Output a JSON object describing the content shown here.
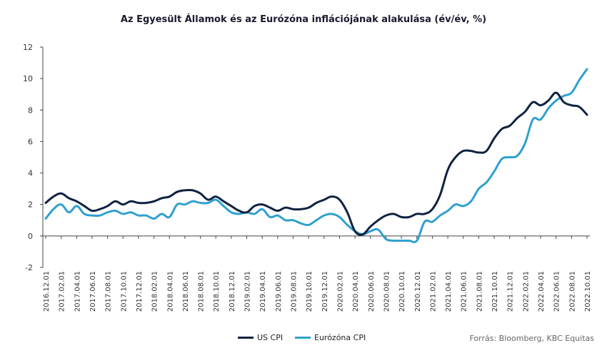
{
  "chart_data": {
    "type": "line",
    "title": "Az Egyesült  Államok és az Eurózóna inflációjának alakulása (év/év, %)",
    "xlabel": "",
    "ylabel": "",
    "ylim": [
      -2,
      12
    ],
    "yticks": [
      -2,
      0,
      2,
      4,
      6,
      8,
      10,
      12
    ],
    "grid": false,
    "legend_position": "bottom",
    "x_tick_labels": [
      "2016.12.01",
      "2017.02.01",
      "2017.04.01",
      "2017.06.01",
      "2017.08.01",
      "2017.10.01",
      "2017.12.01",
      "2018.02.01",
      "2018.04.01",
      "2018.06.01",
      "2018.08.01",
      "2018.10.01",
      "2018.12.01",
      "2019.02.01",
      "2019.04.01",
      "2019.06.01",
      "2019.08.01",
      "2019.10.01",
      "2019.12.01",
      "2020.02.01",
      "2020.04.01",
      "2020.06.01",
      "2020.08.01",
      "2020.10.01",
      "2020.12.01",
      "2021.02.01",
      "2021.04.01",
      "2021.06.01",
      "2021.08.01",
      "2021.10.01",
      "2021.12.01",
      "2022.02.01",
      "2022.04.01",
      "2022.06.01",
      "2022.08.01",
      "2022.10.01"
    ],
    "x": [
      "2016.12.01",
      "2017.01.01",
      "2017.02.01",
      "2017.03.01",
      "2017.04.01",
      "2017.05.01",
      "2017.06.01",
      "2017.07.01",
      "2017.08.01",
      "2017.09.01",
      "2017.10.01",
      "2017.11.01",
      "2017.12.01",
      "2018.01.01",
      "2018.02.01",
      "2018.03.01",
      "2018.04.01",
      "2018.05.01",
      "2018.06.01",
      "2018.07.01",
      "2018.08.01",
      "2018.09.01",
      "2018.10.01",
      "2018.11.01",
      "2018.12.01",
      "2019.01.01",
      "2019.02.01",
      "2019.03.01",
      "2019.04.01",
      "2019.05.01",
      "2019.06.01",
      "2019.07.01",
      "2019.08.01",
      "2019.09.01",
      "2019.10.01",
      "2019.11.01",
      "2019.12.01",
      "2020.01.01",
      "2020.02.01",
      "2020.03.01",
      "2020.04.01",
      "2020.05.01",
      "2020.06.01",
      "2020.07.01",
      "2020.08.01",
      "2020.09.01",
      "2020.10.01",
      "2020.11.01",
      "2020.12.01",
      "2021.01.01",
      "2021.02.01",
      "2021.03.01",
      "2021.04.01",
      "2021.05.01",
      "2021.06.01",
      "2021.07.01",
      "2021.08.01",
      "2021.09.01",
      "2021.10.01",
      "2021.11.01",
      "2021.12.01",
      "2022.01.01",
      "2022.02.01",
      "2022.03.01",
      "2022.04.01",
      "2022.05.01",
      "2022.06.01",
      "2022.07.01",
      "2022.08.01",
      "2022.09.01",
      "2022.10.01"
    ],
    "series": [
      {
        "name": "US CPI",
        "color": "#0f2241",
        "values": [
          2.1,
          2.5,
          2.7,
          2.4,
          2.2,
          1.9,
          1.6,
          1.7,
          1.9,
          2.2,
          2.0,
          2.2,
          2.1,
          2.1,
          2.2,
          2.4,
          2.5,
          2.8,
          2.9,
          2.9,
          2.7,
          2.3,
          2.5,
          2.2,
          1.9,
          1.6,
          1.5,
          1.9,
          2.0,
          1.8,
          1.6,
          1.8,
          1.7,
          1.7,
          1.8,
          2.1,
          2.3,
          2.5,
          2.3,
          1.5,
          0.3,
          0.1,
          0.6,
          1.0,
          1.3,
          1.4,
          1.2,
          1.2,
          1.4,
          1.4,
          1.7,
          2.6,
          4.2,
          5.0,
          5.4,
          5.4,
          5.3,
          5.4,
          6.2,
          6.8,
          7.0,
          7.5,
          7.9,
          8.5,
          8.3,
          8.6,
          9.1,
          8.5,
          8.3,
          8.2,
          7.7
        ]
      },
      {
        "name": "Eurózóna CPI",
        "color": "#2fa0cf",
        "values": [
          1.1,
          1.7,
          2.0,
          1.5,
          1.9,
          1.4,
          1.3,
          1.3,
          1.5,
          1.6,
          1.4,
          1.5,
          1.3,
          1.3,
          1.1,
          1.4,
          1.2,
          2.0,
          2.0,
          2.2,
          2.1,
          2.1,
          2.3,
          1.9,
          1.5,
          1.4,
          1.5,
          1.4,
          1.7,
          1.2,
          1.3,
          1.0,
          1.0,
          0.8,
          0.7,
          1.0,
          1.3,
          1.4,
          1.2,
          0.7,
          0.3,
          0.1,
          0.3,
          0.4,
          -0.2,
          -0.3,
          -0.3,
          -0.3,
          -0.3,
          0.9,
          0.9,
          1.3,
          1.6,
          2.0,
          1.9,
          2.2,
          3.0,
          3.4,
          4.1,
          4.9,
          5.0,
          5.1,
          5.9,
          7.4,
          7.4,
          8.1,
          8.6,
          8.9,
          9.1,
          9.9,
          10.6
        ]
      }
    ]
  },
  "legend": [
    {
      "label": "US CPI",
      "color": "#0f2241"
    },
    {
      "label": "Eurózóna CPI",
      "color": "#2fa0cf"
    }
  ],
  "source": "Forrás: Bloomberg, KBC Equitas"
}
